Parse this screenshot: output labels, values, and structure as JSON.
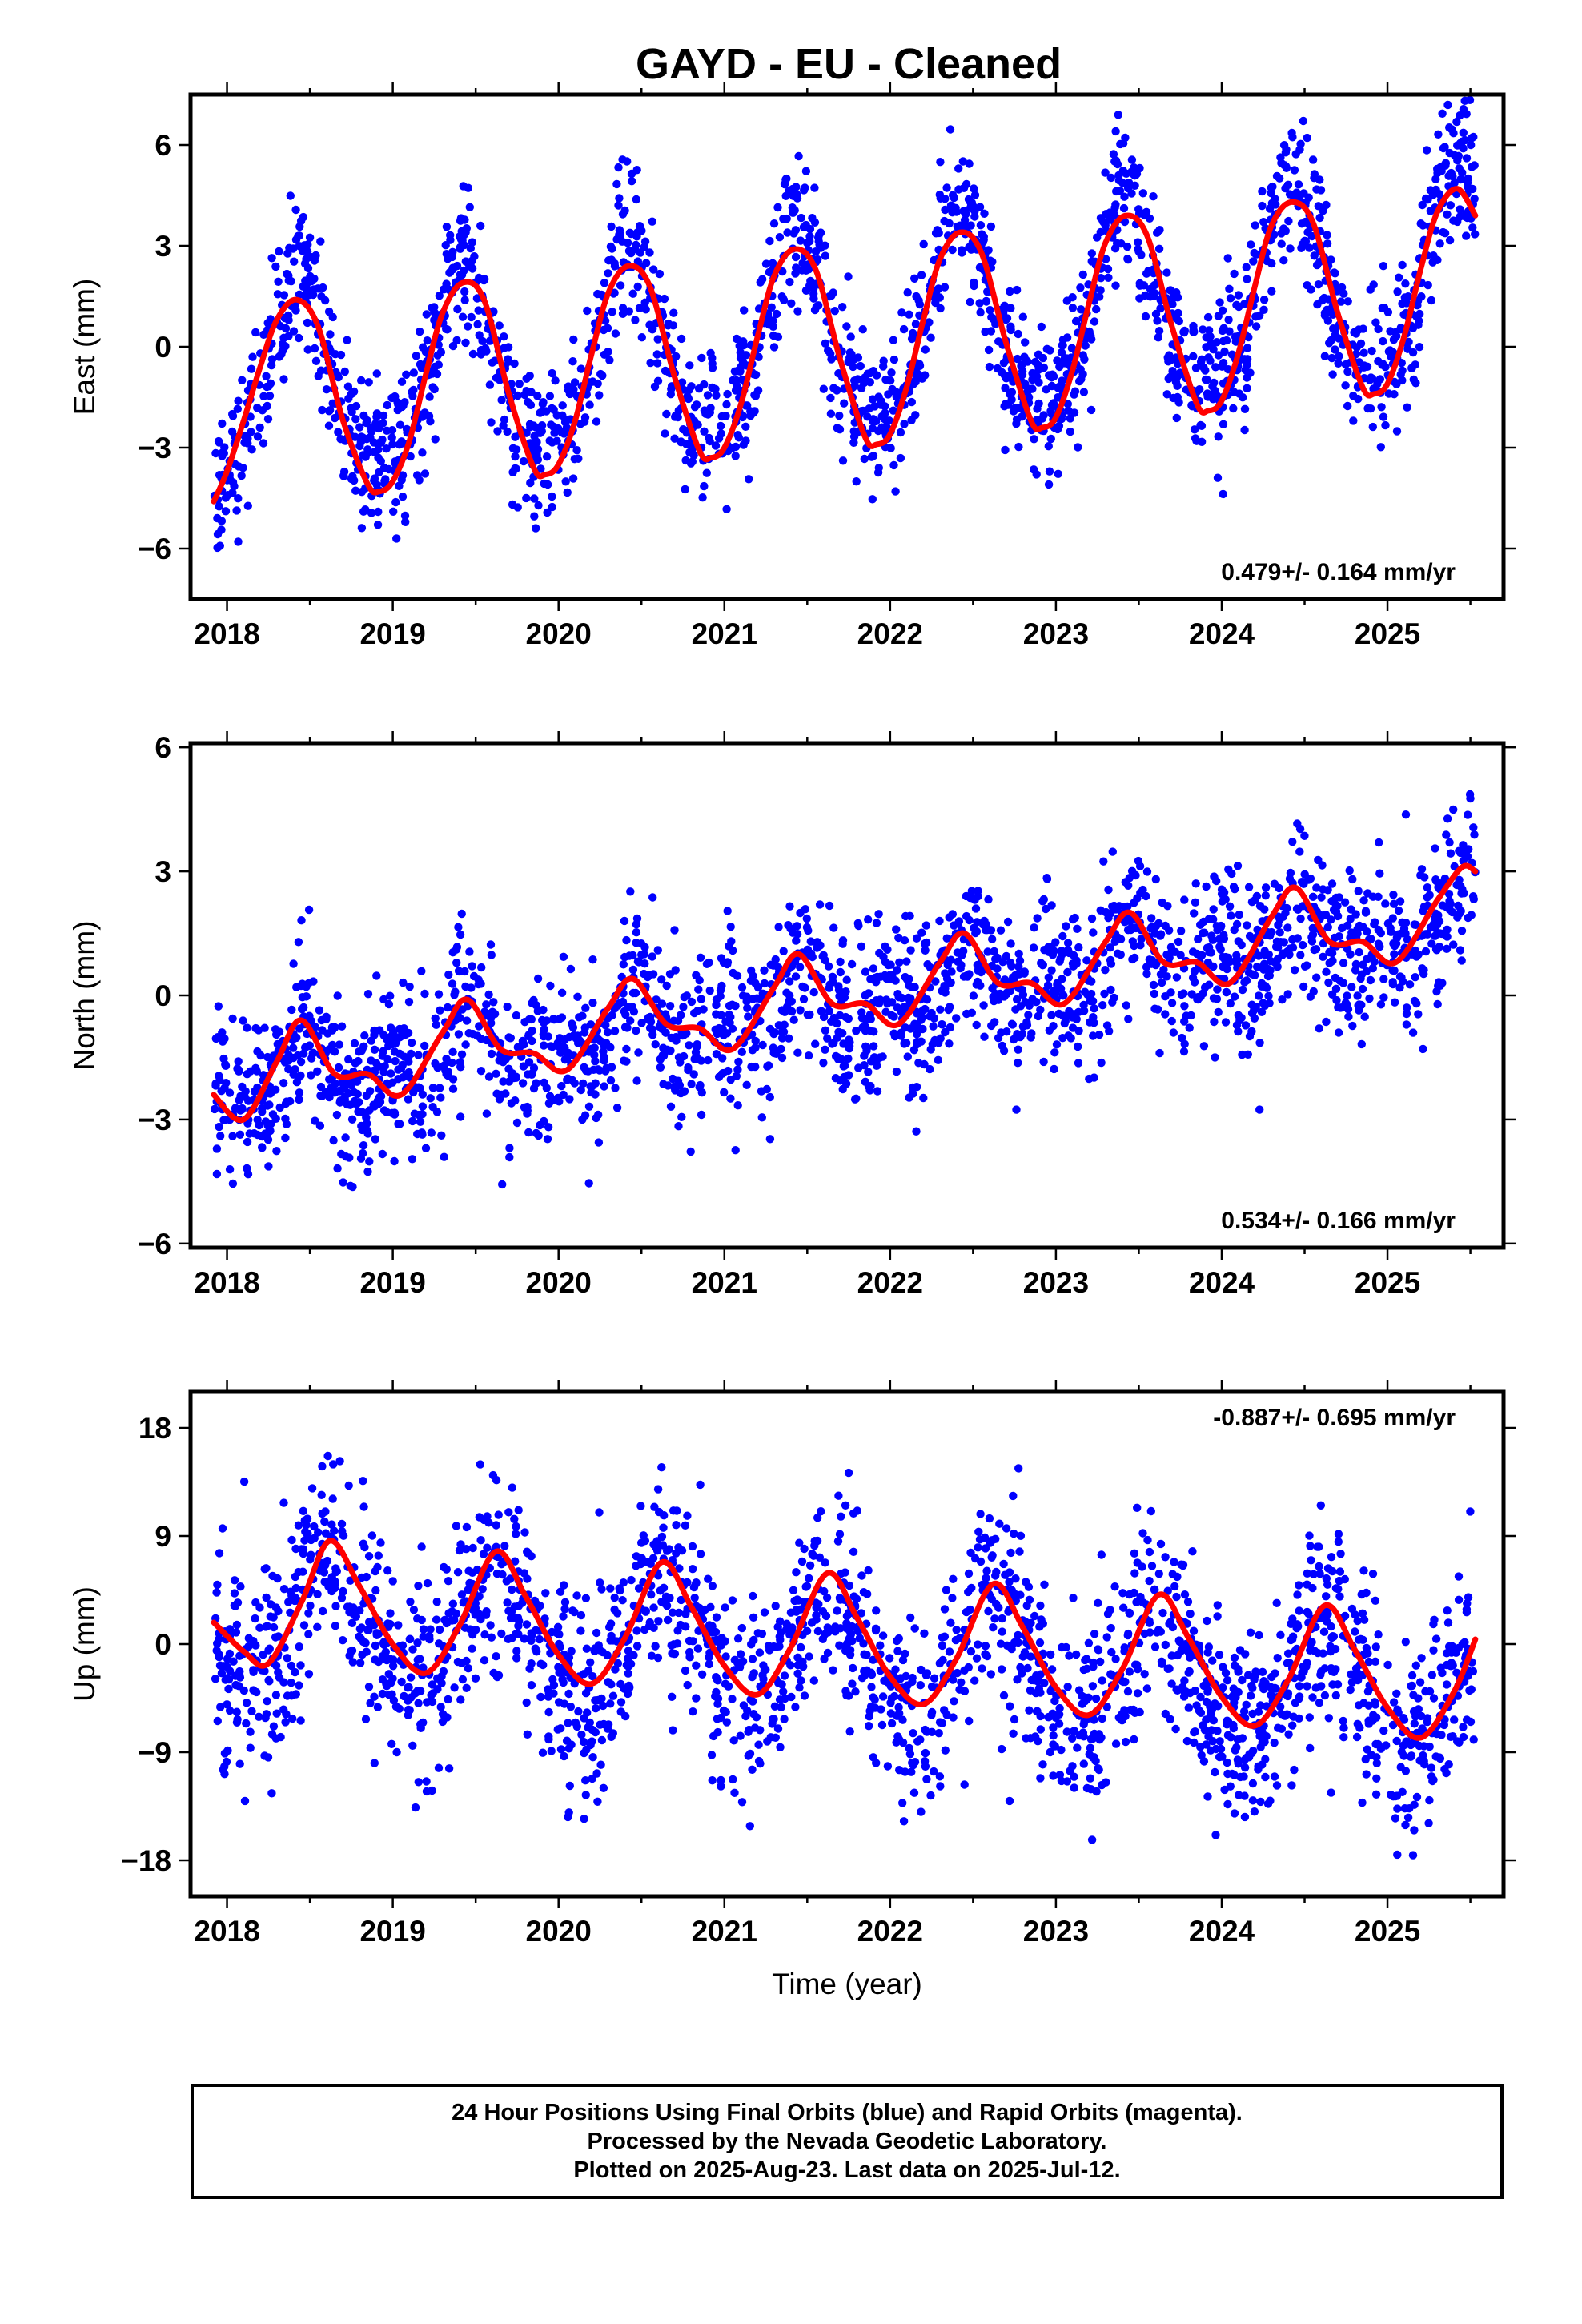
{
  "title": "GAYD  - EU - Cleaned",
  "colors": {
    "points": "#0000ff",
    "fit": "#ff0000",
    "frame": "#000000"
  },
  "footer": {
    "line1": "24 Hour Positions Using Final Orbits (blue) and Rapid Orbits (magenta).",
    "line2": "Processed by the Nevada Geodetic Laboratory.",
    "line3": "Plotted on 2025-Aug-23. Last data on 2025-Jul-12."
  },
  "chart_data": [
    {
      "type": "scatter",
      "ylabel": "East (mm)",
      "xlabel": "",
      "xlim": [
        2017.78,
        2025.7
      ],
      "ylim": [
        -7.5,
        7.5
      ],
      "xticks": [
        2018,
        2019,
        2020,
        2021,
        2022,
        2023,
        2024,
        2025
      ],
      "yticks": [
        -6,
        -3,
        0,
        3,
        6
      ],
      "ytick_labels": [
        "−6",
        "−3",
        "0",
        "3",
        "6"
      ],
      "rate": "0.479+/- 0.164 mm/yr",
      "rate_position": "bottom-right",
      "fit": [
        [
          2017.92,
          -4.6
        ],
        [
          2018.0,
          -3.7
        ],
        [
          2018.1,
          -2.2
        ],
        [
          2018.2,
          -0.6
        ],
        [
          2018.3,
          0.8
        ],
        [
          2018.42,
          1.4
        ],
        [
          2018.55,
          0.6
        ],
        [
          2018.7,
          -2.2
        ],
        [
          2018.85,
          -4.1
        ],
        [
          2018.92,
          -4.3
        ],
        [
          2019.0,
          -4.0
        ],
        [
          2019.1,
          -2.8
        ],
        [
          2019.2,
          -0.8
        ],
        [
          2019.3,
          1.0
        ],
        [
          2019.42,
          1.9
        ],
        [
          2019.55,
          1.4
        ],
        [
          2019.7,
          -1.4
        ],
        [
          2019.85,
          -3.6
        ],
        [
          2019.92,
          -3.8
        ],
        [
          2020.0,
          -3.5
        ],
        [
          2020.1,
          -2.2
        ],
        [
          2020.2,
          -0.2
        ],
        [
          2020.3,
          1.6
        ],
        [
          2020.42,
          2.4
        ],
        [
          2020.55,
          1.8
        ],
        [
          2020.7,
          -0.9
        ],
        [
          2020.85,
          -3.1
        ],
        [
          2020.92,
          -3.3
        ],
        [
          2021.0,
          -3.0
        ],
        [
          2021.1,
          -1.7
        ],
        [
          2021.2,
          0.3
        ],
        [
          2021.3,
          2.1
        ],
        [
          2021.42,
          2.9
        ],
        [
          2021.55,
          2.3
        ],
        [
          2021.7,
          -0.4
        ],
        [
          2021.85,
          -2.7
        ],
        [
          2021.92,
          -2.9
        ],
        [
          2022.0,
          -2.6
        ],
        [
          2022.1,
          -1.2
        ],
        [
          2022.2,
          0.8
        ],
        [
          2022.3,
          2.6
        ],
        [
          2022.42,
          3.4
        ],
        [
          2022.55,
          2.8
        ],
        [
          2022.7,
          0.1
        ],
        [
          2022.85,
          -2.2
        ],
        [
          2022.92,
          -2.4
        ],
        [
          2023.0,
          -2.1
        ],
        [
          2023.1,
          -0.7
        ],
        [
          2023.2,
          1.3
        ],
        [
          2023.3,
          3.1
        ],
        [
          2023.42,
          3.9
        ],
        [
          2023.55,
          3.3
        ],
        [
          2023.7,
          0.6
        ],
        [
          2023.85,
          -1.7
        ],
        [
          2023.92,
          -1.9
        ],
        [
          2024.0,
          -1.6
        ],
        [
          2024.1,
          -0.2
        ],
        [
          2024.2,
          1.8
        ],
        [
          2024.3,
          3.6
        ],
        [
          2024.42,
          4.3
        ],
        [
          2024.55,
          3.7
        ],
        [
          2024.7,
          1.0
        ],
        [
          2024.85,
          -1.2
        ],
        [
          2024.92,
          -1.4
        ],
        [
          2025.0,
          -1.1
        ],
        [
          2025.1,
          0.3
        ],
        [
          2025.2,
          2.3
        ],
        [
          2025.3,
          4.0
        ],
        [
          2025.42,
          4.7
        ],
        [
          2025.53,
          3.9
        ]
      ],
      "fit_shape": {
        "mean_at_2018": -1.5,
        "trend_per_year": 0.479,
        "annual_amp": 2.9,
        "semiannual_amp": 0.55,
        "peak_phase": 0.42
      },
      "points": {
        "x_range": [
          2017.92,
          2025.53
        ],
        "noise_sd": 1.1,
        "count": 2200
      }
    },
    {
      "type": "scatter",
      "ylabel": "North (mm)",
      "xlabel": "",
      "xlim": [
        2017.78,
        2025.7
      ],
      "ylim": [
        -6.1,
        6.1
      ],
      "xticks": [
        2018,
        2019,
        2020,
        2021,
        2022,
        2023,
        2024,
        2025
      ],
      "yticks": [
        -6,
        -3,
        0,
        3,
        6
      ],
      "ytick_labels": [
        "−6",
        "−3",
        "0",
        "3",
        "6"
      ],
      "rate": "0.534+/- 0.166 mm/yr",
      "rate_position": "bottom-right",
      "fit": [
        [
          2017.92,
          -2.4
        ],
        [
          2018.1,
          -3.0
        ],
        [
          2018.3,
          -1.6
        ],
        [
          2018.45,
          -0.6
        ],
        [
          2018.65,
          -1.9
        ],
        [
          2018.85,
          -1.9
        ],
        [
          2019.05,
          -2.4
        ],
        [
          2019.3,
          -0.9
        ],
        [
          2019.45,
          -0.1
        ],
        [
          2019.65,
          -1.3
        ],
        [
          2019.85,
          -1.4
        ],
        [
          2020.05,
          -1.8
        ],
        [
          2020.3,
          -0.3
        ],
        [
          2020.45,
          0.4
        ],
        [
          2020.65,
          -0.7
        ],
        [
          2020.85,
          -0.8
        ],
        [
          2021.05,
          -1.3
        ],
        [
          2021.3,
          0.2
        ],
        [
          2021.45,
          1.0
        ],
        [
          2021.65,
          -0.2
        ],
        [
          2021.85,
          -0.2
        ],
        [
          2022.05,
          -0.7
        ],
        [
          2022.3,
          0.8
        ],
        [
          2022.45,
          1.5
        ],
        [
          2022.65,
          0.3
        ],
        [
          2022.85,
          0.3
        ],
        [
          2023.05,
          -0.2
        ],
        [
          2023.3,
          1.3
        ],
        [
          2023.45,
          2.0
        ],
        [
          2023.65,
          0.8
        ],
        [
          2023.85,
          0.8
        ],
        [
          2024.05,
          0.3
        ],
        [
          2024.3,
          1.9
        ],
        [
          2024.45,
          2.6
        ],
        [
          2024.65,
          1.3
        ],
        [
          2024.85,
          1.3
        ],
        [
          2025.05,
          0.8
        ],
        [
          2025.3,
          2.3
        ],
        [
          2025.45,
          3.1
        ],
        [
          2025.53,
          3.0
        ]
      ],
      "fit_shape": {
        "mean_at_2018": -2.2,
        "trend_per_year": 0.534,
        "annual_amp": 0.55,
        "semiannual_amp": 0.55,
        "peak_phase": 0.47
      },
      "points": {
        "x_range": [
          2017.92,
          2025.53
        ],
        "noise_sd": 1.0,
        "count": 2200
      }
    },
    {
      "type": "scatter",
      "ylabel": "Up (mm)",
      "xlabel": "Time (year)",
      "xlim": [
        2017.78,
        2025.7
      ],
      "ylim": [
        -21,
        21
      ],
      "xticks": [
        2018,
        2019,
        2020,
        2021,
        2022,
        2023,
        2024,
        2025
      ],
      "yticks": [
        -18,
        -9,
        0,
        9,
        18
      ],
      "ytick_labels": [
        "−18",
        "−9",
        "0",
        "9",
        "18"
      ],
      "rate": "-0.887+/- 0.695 mm/yr",
      "rate_position": "top-right",
      "fit": [
        [
          2017.92,
          1.8
        ],
        [
          2018.1,
          -0.6
        ],
        [
          2018.25,
          -1.6
        ],
        [
          2018.45,
          3.5
        ],
        [
          2018.62,
          8.6
        ],
        [
          2018.8,
          4.8
        ],
        [
          2019.0,
          0.0
        ],
        [
          2019.2,
          -2.4
        ],
        [
          2019.4,
          1.5
        ],
        [
          2019.62,
          7.7
        ],
        [
          2019.8,
          4.0
        ],
        [
          2020.0,
          -0.9
        ],
        [
          2020.2,
          -3.3
        ],
        [
          2020.4,
          0.5
        ],
        [
          2020.62,
          6.8
        ],
        [
          2020.8,
          3.1
        ],
        [
          2021.0,
          -1.8
        ],
        [
          2021.2,
          -4.2
        ],
        [
          2021.4,
          -0.3
        ],
        [
          2021.62,
          5.9
        ],
        [
          2021.8,
          2.2
        ],
        [
          2022.0,
          -2.7
        ],
        [
          2022.2,
          -5.0
        ],
        [
          2022.4,
          -1.2
        ],
        [
          2022.62,
          5.0
        ],
        [
          2022.8,
          1.4
        ],
        [
          2023.0,
          -3.6
        ],
        [
          2023.2,
          -5.9
        ],
        [
          2023.4,
          -2.1
        ],
        [
          2023.62,
          4.1
        ],
        [
          2023.8,
          0.5
        ],
        [
          2024.0,
          -4.4
        ],
        [
          2024.2,
          -6.8
        ],
        [
          2024.4,
          -3.0
        ],
        [
          2024.62,
          3.2
        ],
        [
          2024.8,
          -0.4
        ],
        [
          2025.0,
          -5.3
        ],
        [
          2025.2,
          -7.8
        ],
        [
          2025.4,
          -4.0
        ],
        [
          2025.53,
          0.4
        ]
      ],
      "fit_shape": {
        "mean_at_2018": 2.4,
        "trend_per_year": -0.887,
        "annual_amp": 5.0,
        "semiannual_amp": 0.6,
        "peak_phase": 0.62
      },
      "points": {
        "x_range": [
          2017.92,
          2025.53
        ],
        "noise_sd": 4.2,
        "count": 2200
      }
    }
  ]
}
